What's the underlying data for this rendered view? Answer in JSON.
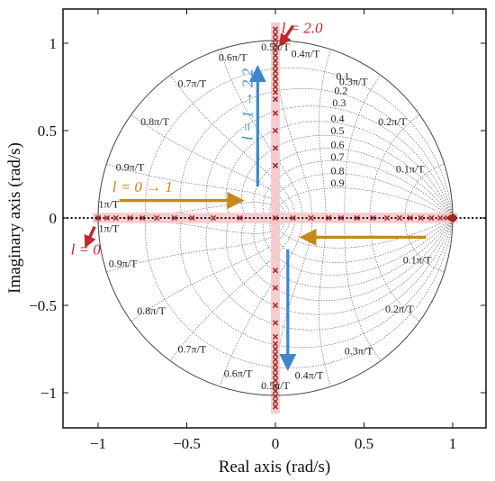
{
  "chart_data": {
    "type": "scatter",
    "xlabel": "Real axis (rad/s)",
    "ylabel": "Imaginary axis (rad/s)",
    "xlim": [
      -1.2,
      1.2
    ],
    "ylim": [
      -1.2,
      1.2
    ],
    "x_ticks": [
      {
        "v": -1,
        "t": "−1"
      },
      {
        "v": -0.5,
        "t": "−0.5"
      },
      {
        "v": 0,
        "t": "0"
      },
      {
        "v": 0.5,
        "t": "0.5"
      },
      {
        "v": 1,
        "t": "1"
      }
    ],
    "y_ticks": [
      {
        "v": -1,
        "t": "−1"
      },
      {
        "v": -0.5,
        "t": "−0.5"
      },
      {
        "v": 0,
        "t": "0"
      },
      {
        "v": 0.5,
        "t": "0.5"
      },
      {
        "v": 1,
        "t": "1"
      }
    ],
    "grid": "z-plane damping and natural-frequency grid",
    "unit_circle": true,
    "colors": {
      "poles": "#a0281e",
      "highlight": "#f4c3c8",
      "arrow_blue": "#3f86d0",
      "arrow_orange": "#c8871a",
      "label_red": "#c0282b"
    },
    "damping_values": [
      0.1,
      0.2,
      0.3,
      0.4,
      0.5,
      0.6,
      0.7,
      0.8,
      0.9
    ],
    "damping_labels": [
      "0.1",
      "0.2",
      "0.3",
      "0.4",
      "0.5",
      "0.6",
      "0.7",
      "0.8",
      "0.9"
    ],
    "frequency_values": [
      0.1,
      0.2,
      0.3,
      0.4,
      0.5,
      0.6,
      0.7,
      0.8,
      0.9,
      1.0
    ],
    "frequency_labels": [
      "0.1π/T",
      "0.2π/T",
      "0.3π/T",
      "0.4π/T",
      "0.5π/T",
      "0.6π/T",
      "0.7π/T",
      "0.8π/T",
      "0.9π/T",
      "1π/T"
    ],
    "poles_real": {
      "x": [
        -1.0,
        -0.95,
        -0.9,
        -0.82,
        -0.75,
        -0.67,
        -0.57,
        -0.47,
        -0.35,
        -0.2,
        0.0,
        0.1,
        0.2,
        0.3,
        0.37,
        0.46,
        0.55,
        0.63,
        0.7,
        0.76,
        0.82,
        0.88,
        0.93,
        0.97,
        1.0
      ],
      "y": [
        0,
        0,
        0,
        0,
        0,
        0,
        0,
        0,
        0,
        0,
        0,
        0,
        0,
        0,
        0,
        0,
        0,
        0,
        0,
        0,
        0,
        0,
        0,
        0,
        0
      ]
    },
    "poles_imag": {
      "x": [
        0,
        0,
        0,
        0,
        0,
        0,
        0,
        0,
        0,
        0,
        0,
        0,
        0,
        0,
        0,
        0,
        0,
        0,
        0,
        0,
        0,
        0,
        0,
        0,
        0,
        0,
        0,
        0,
        0,
        0,
        0,
        0,
        0,
        0,
        0,
        0
      ],
      "y": [
        1.08,
        1.05,
        1.02,
        0.99,
        0.96,
        0.93,
        0.9,
        0.87,
        0.84,
        0.81,
        0.78,
        0.75,
        0.72,
        0.68,
        0.6,
        0.5,
        0.4,
        0.3,
        -0.3,
        -0.4,
        -0.5,
        -0.6,
        -0.68,
        -0.72,
        -0.75,
        -0.78,
        -0.81,
        -0.84,
        -0.87,
        -0.9,
        -0.93,
        -0.96,
        -0.99,
        -1.02,
        -1.05,
        -1.08
      ]
    },
    "annotations": [
      {
        "id": "l0",
        "text": "l = 0",
        "x": -1.07,
        "y": -0.21,
        "color": "label_red"
      },
      {
        "id": "l2",
        "text": "l = 2.0",
        "x": 0.15,
        "y": 1.06,
        "color": "label_red"
      },
      {
        "id": "l01",
        "text": "l = 0 → 1",
        "x": -0.75,
        "y": 0.15,
        "color": "arrow_orange"
      },
      {
        "id": "l12",
        "text": "l = 1 → 2.2",
        "x": -0.13,
        "y": 0.65,
        "color": "arrow_blue",
        "rotate": -90
      }
    ],
    "arrows": [
      {
        "id": "arrow-l01",
        "from": [
          -0.88,
          0.1
        ],
        "to": [
          -0.22,
          0.1
        ],
        "color": "arrow_orange"
      },
      {
        "id": "arrow-left",
        "from": [
          0.85,
          -0.11
        ],
        "to": [
          0.18,
          -0.11
        ],
        "color": "arrow_orange"
      },
      {
        "id": "arrow-up",
        "from": [
          -0.1,
          0.18
        ],
        "to": [
          -0.1,
          0.83
        ],
        "color": "arrow_blue"
      },
      {
        "id": "arrow-down",
        "from": [
          0.07,
          -0.18
        ],
        "to": [
          0.07,
          -0.83
        ],
        "color": "arrow_blue"
      },
      {
        "id": "arrow-l2",
        "from": [
          0.1,
          1.1
        ],
        "to": [
          0.04,
          1.01
        ],
        "color": "label_red"
      },
      {
        "id": "arrow-l0",
        "from": [
          -1.02,
          -0.05
        ],
        "to": [
          -1.06,
          -0.14
        ],
        "color": "label_red"
      }
    ]
  }
}
